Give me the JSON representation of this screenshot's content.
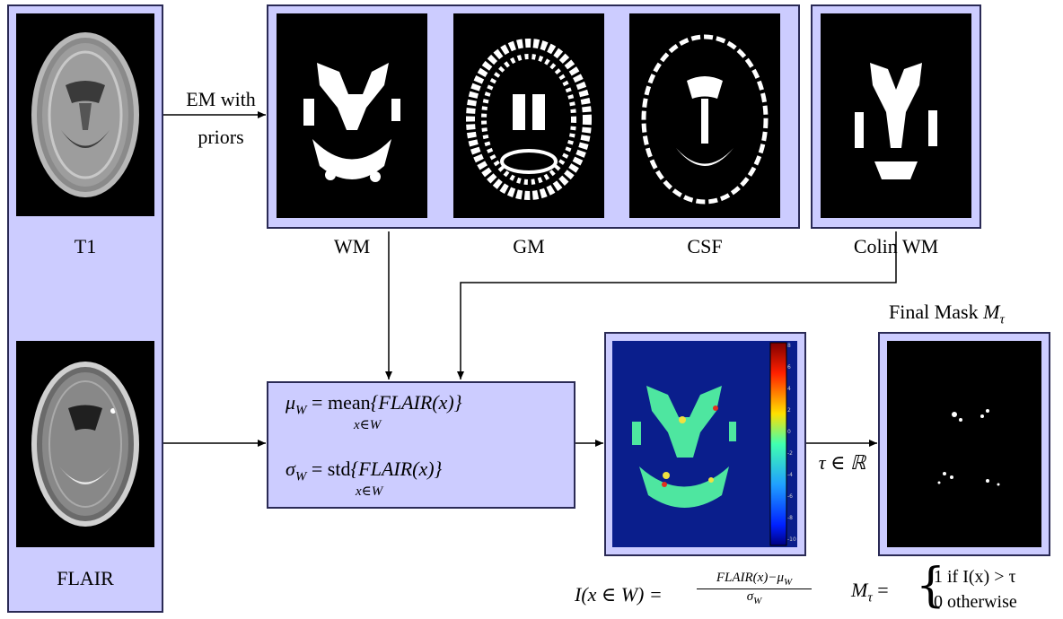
{
  "inputs": {
    "t1_label": "T1",
    "flair_label": "FLAIR"
  },
  "em_step": {
    "line1": "EM with",
    "line2": "priors"
  },
  "segmentation": {
    "labels": [
      "WM",
      "GM",
      "CSF"
    ]
  },
  "atlas": {
    "label": "Colin WM"
  },
  "stats_box": {
    "mu_lhs": "μ",
    "mu_sub": "W",
    "mu_op": "mean",
    "mu_under": "x∈W",
    "mu_rhs": "{FLAIR(x)}",
    "sigma_lhs": "σ",
    "sigma_sub": "W",
    "sigma_op": "std",
    "sigma_under": "x∈W",
    "sigma_rhs": "{FLAIR(x)}"
  },
  "zscore": {
    "lhs": "I(x ∈ W) =",
    "numerator": "FLAIR(x)−μ",
    "numerator_sub": "W",
    "denominator": "σ",
    "denominator_sub": "W",
    "colorbar_ticks": [
      "8",
      "6",
      "4",
      "2",
      "0",
      "-2",
      "-4",
      "-6",
      "-8",
      "-10"
    ]
  },
  "threshold": {
    "label": "τ ∈ ℝ"
  },
  "final_mask": {
    "title": "Final Mask ",
    "title_math": "M",
    "title_sub": "τ",
    "def_lhs": "M",
    "def_lhs_sub": "τ",
    "case1": "1 if I(x) > τ",
    "case2": "0 otherwise"
  },
  "colors": {
    "panel_fill": "#ccccff",
    "panel_border": "#2a2a55",
    "heatmap_bg": "#0a1e8c"
  }
}
